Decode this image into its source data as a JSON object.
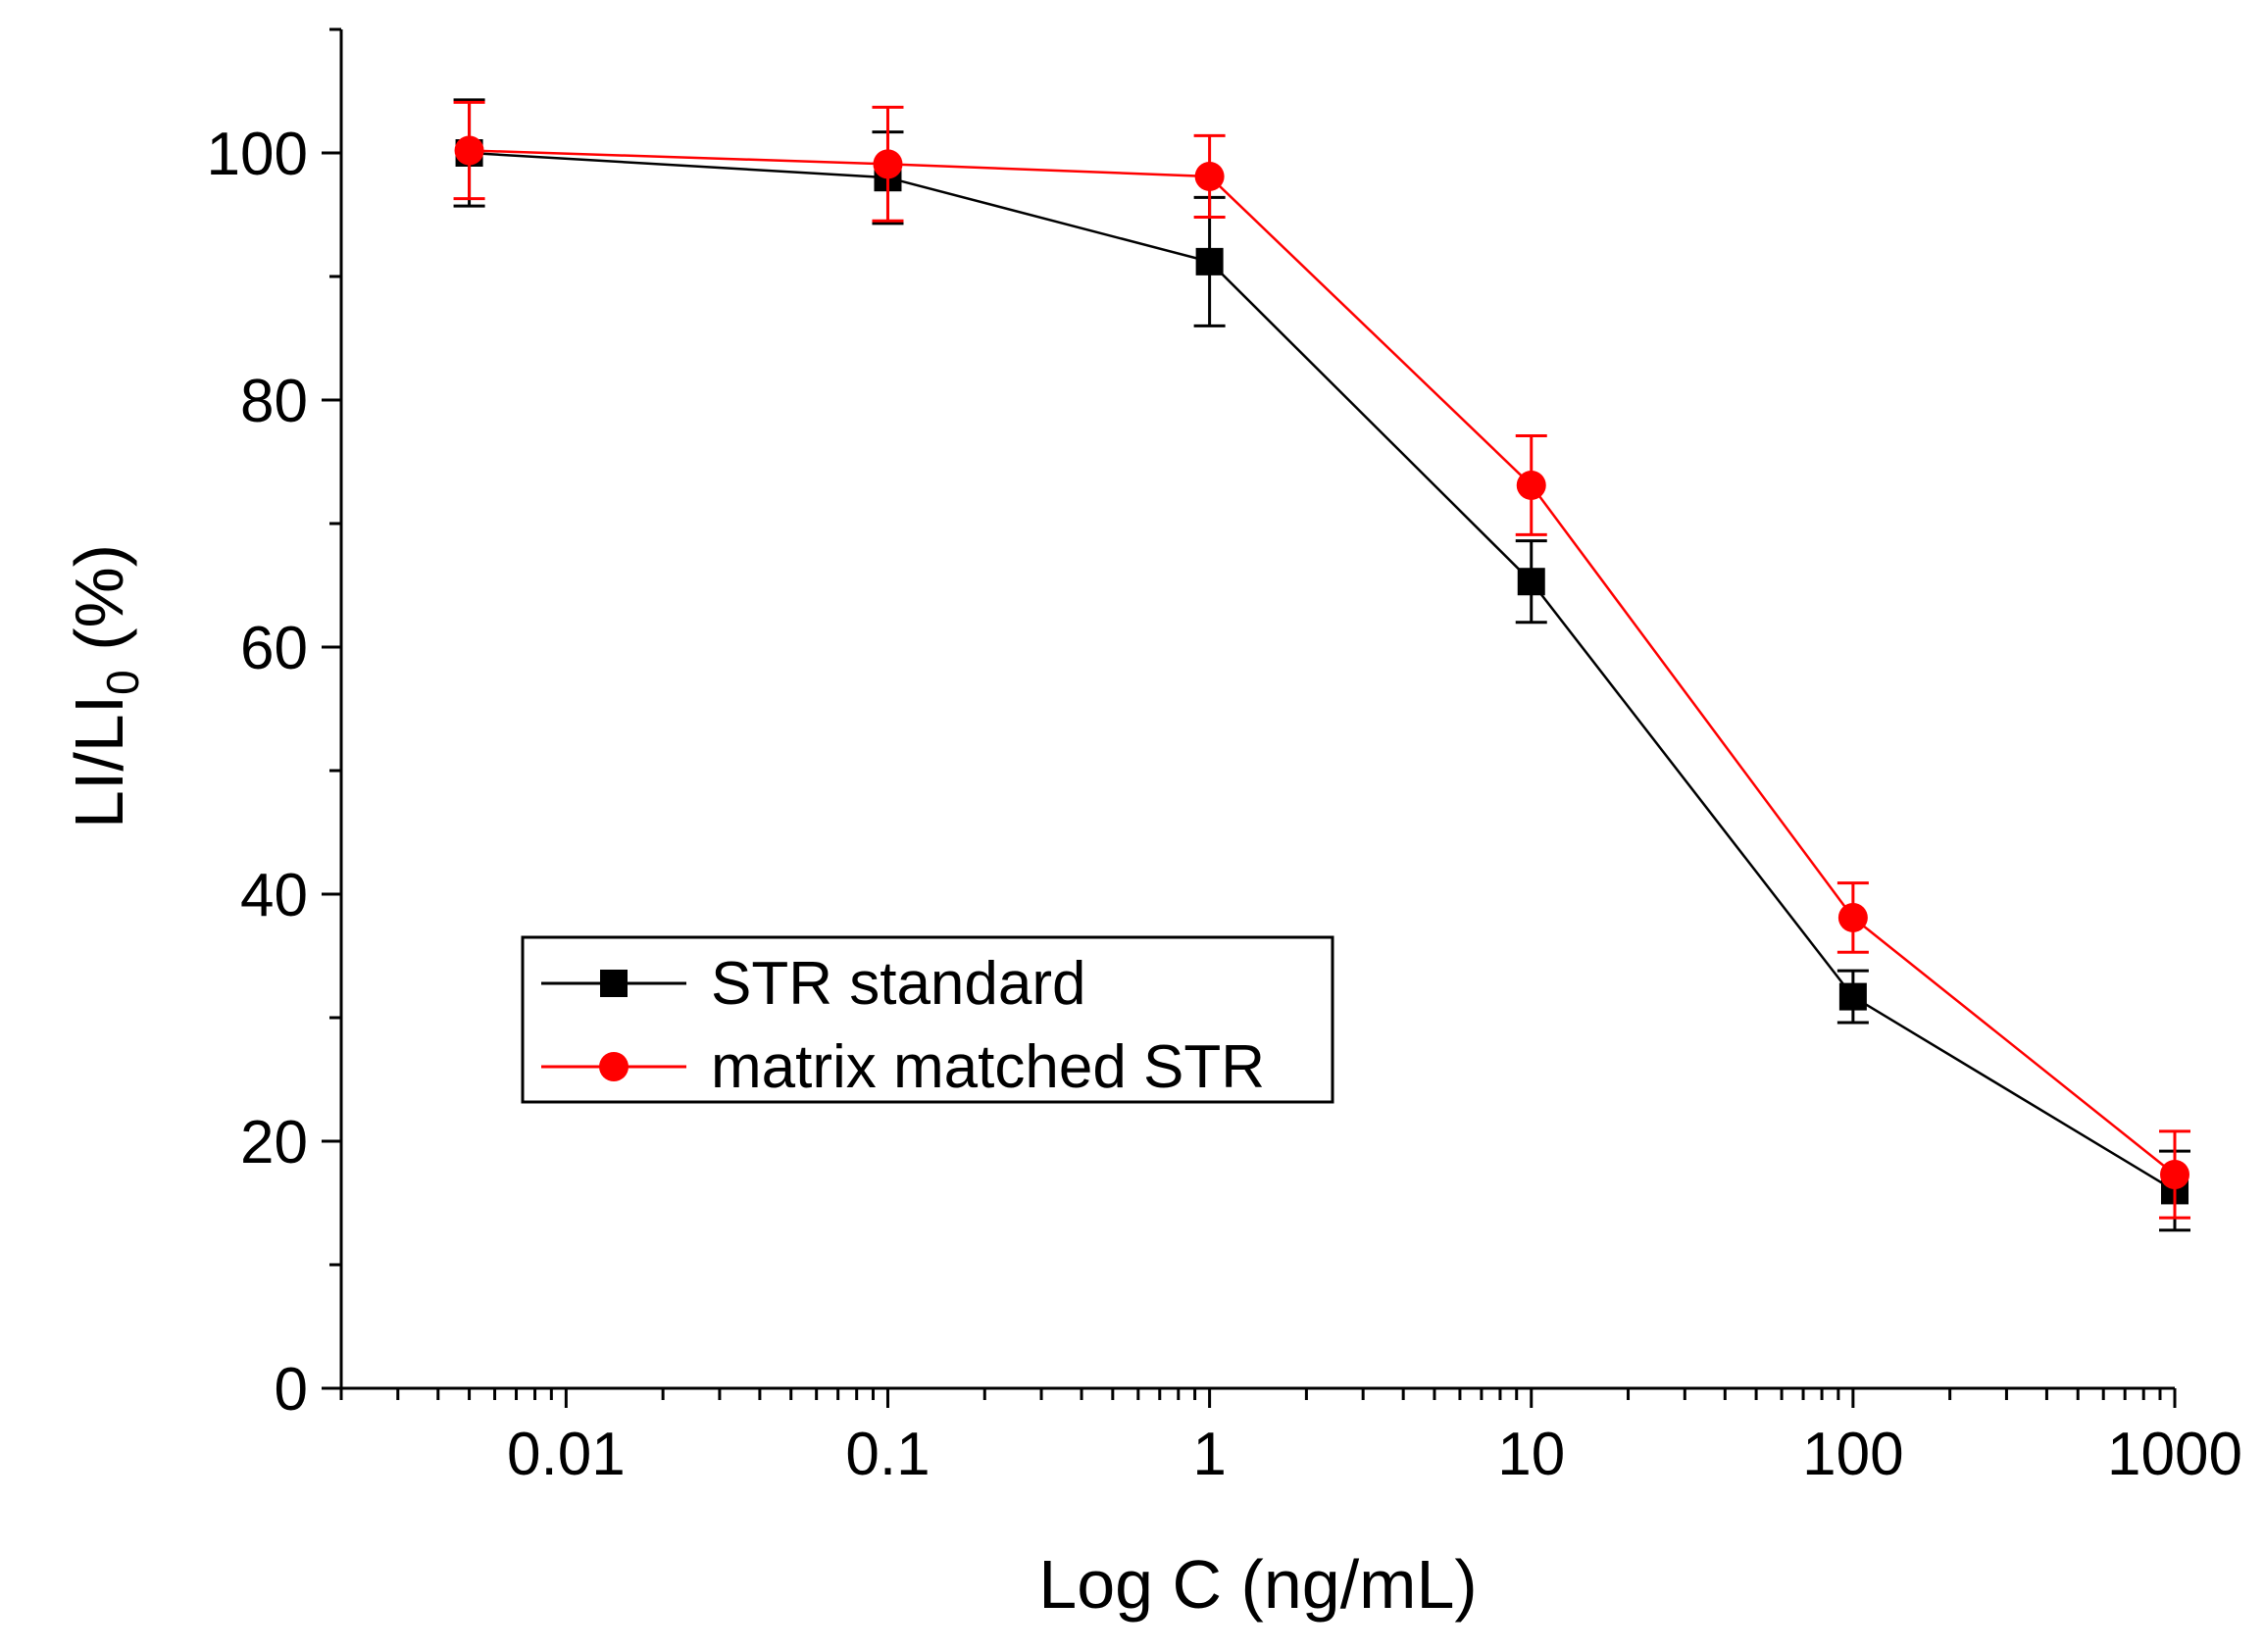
{
  "chart_data": {
    "type": "line",
    "x_scale": "log",
    "xlabel": "Log C (ng/mL)",
    "ylabel": {
      "main": "LI/LI",
      "subscript": "0",
      "suffix": " (%)"
    },
    "xlim": [
      0.002,
      1000
    ],
    "ylim": [
      0,
      110
    ],
    "x_ticks": [
      0.01,
      0.1,
      1,
      10,
      100,
      1000
    ],
    "x_tick_labels": [
      "0.01",
      "0.1",
      "1",
      "10",
      "100",
      "1000"
    ],
    "y_ticks": [
      0,
      20,
      40,
      60,
      80,
      100
    ],
    "y_tick_labels": [
      "0",
      "20",
      "40",
      "60",
      "80",
      "100"
    ],
    "legend_position": "center-left",
    "series": [
      {
        "name": "STR standard",
        "color": "#000000",
        "marker": "square",
        "x": [
          0.005,
          0.1,
          1,
          10,
          100,
          1000
        ],
        "y": [
          100,
          98,
          91.2,
          65.3,
          31.7,
          16.0
        ],
        "err": [
          4.3,
          3.7,
          5.2,
          3.3,
          2.1,
          3.2
        ]
      },
      {
        "name": "matrix matched STR",
        "color": "#ff0000",
        "marker": "circle",
        "x": [
          0.005,
          0.1,
          1,
          10,
          100,
          1000
        ],
        "y": [
          100.2,
          99.1,
          98.1,
          73.1,
          38.1,
          17.3
        ],
        "err": [
          3.9,
          4.6,
          3.3,
          4.0,
          2.8,
          3.5
        ]
      }
    ]
  }
}
